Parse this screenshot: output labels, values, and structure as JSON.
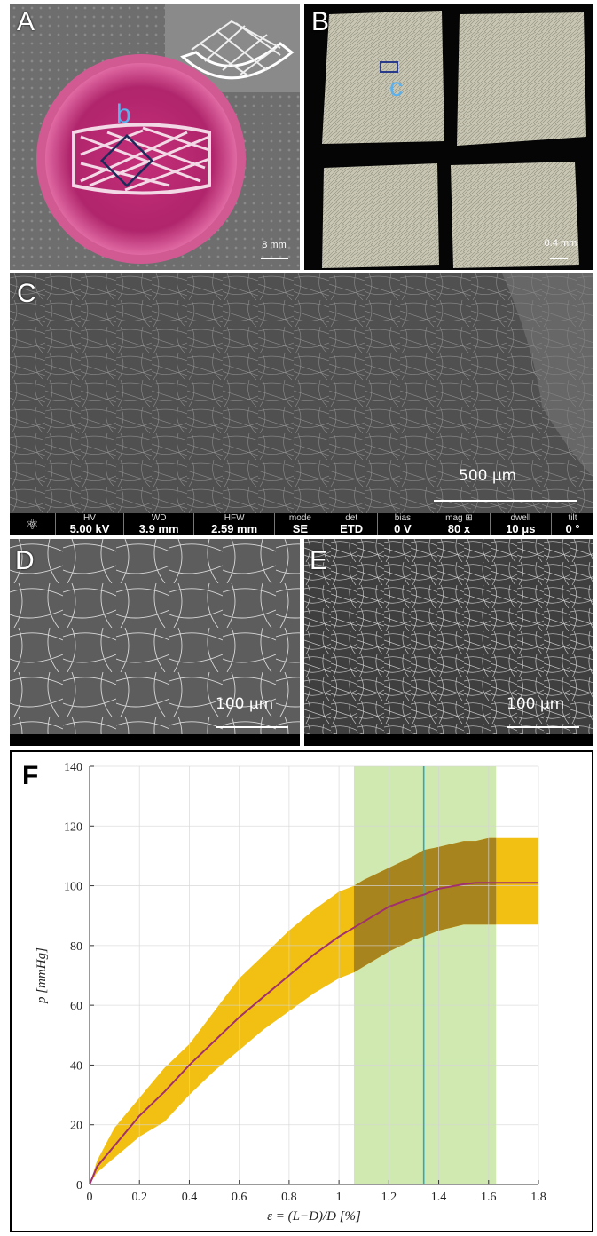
{
  "panels": {
    "A": {
      "label": "A",
      "inset_label": "b",
      "scale": "8 mm"
    },
    "B": {
      "label": "B",
      "inset_label": "c",
      "scale": "0.4 mm"
    },
    "C": {
      "label": "C",
      "scale": "500 μm",
      "infobar": [
        {
          "head": "HV",
          "val": "5.00 kV"
        },
        {
          "head": "WD",
          "val": "3.9 mm"
        },
        {
          "head": "HFW",
          "val": "2.59 mm"
        },
        {
          "head": "mode",
          "val": "SE"
        },
        {
          "head": "det",
          "val": "ETD"
        },
        {
          "head": "bias",
          "val": "0 V"
        },
        {
          "head": "mag ⊞",
          "val": "80 x"
        },
        {
          "head": "dwell",
          "val": "10 μs"
        },
        {
          "head": "tilt",
          "val": "0 °"
        }
      ]
    },
    "D": {
      "label": "D",
      "scale": "100 μm"
    },
    "E": {
      "label": "E",
      "scale": "100 μm"
    },
    "F": {
      "label": "F"
    }
  },
  "chart_data": {
    "type": "area",
    "xlabel": "ε = (L−D)/D [%]",
    "ylabel": "p [mmHg]",
    "xlim": [
      0,
      1.8
    ],
    "ylim": [
      0,
      140
    ],
    "xticks": [
      "0",
      "0.2",
      "0.4",
      "0.6",
      "0.8",
      "1",
      "1.2",
      "1.4",
      "1.6",
      "1.8"
    ],
    "yticks": [
      "0",
      "20",
      "40",
      "60",
      "80",
      "100",
      "120",
      "140"
    ],
    "grid": true,
    "x": [
      0,
      0.03,
      0.1,
      0.2,
      0.3,
      0.4,
      0.5,
      0.6,
      0.7,
      0.8,
      0.9,
      1.0,
      1.06,
      1.1,
      1.2,
      1.3,
      1.34,
      1.4,
      1.5,
      1.55,
      1.6,
      1.8
    ],
    "mean": [
      0,
      6,
      13,
      23,
      31,
      40,
      48,
      56,
      63,
      70,
      77,
      83,
      86,
      88,
      93,
      96,
      97,
      99,
      100.5,
      101,
      101,
      101
    ],
    "upper": [
      0,
      8,
      19,
      29,
      39,
      47,
      58,
      69,
      77,
      85,
      92,
      98,
      100,
      102,
      106,
      110,
      112,
      113,
      115,
      115,
      116,
      116
    ],
    "lower": [
      0,
      4,
      9,
      16,
      21,
      30,
      38,
      45,
      52,
      58,
      64,
      69,
      71,
      73,
      78,
      82,
      83,
      85,
      87,
      87,
      87,
      87
    ],
    "highlight_xrange": [
      1.06,
      1.63
    ],
    "vline_x": 1.34,
    "colors": {
      "mean": "#a0306e",
      "band": "#f2c012",
      "band_overlap": "#a8841e",
      "highlight": "#cfe9b0",
      "vline": "#2aa8c8"
    }
  }
}
